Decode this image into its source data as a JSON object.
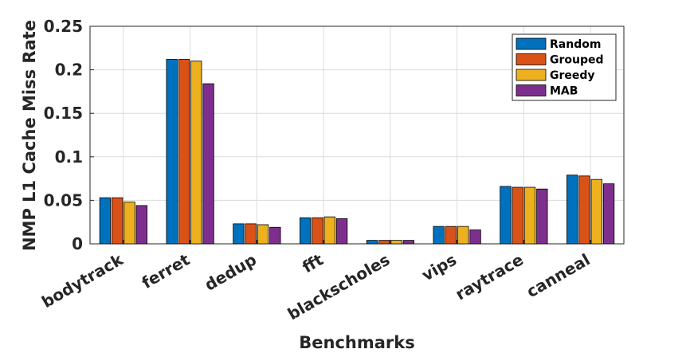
{
  "chart_data": {
    "type": "bar",
    "xlabel": "Benchmarks",
    "ylabel": "NMP L1 Cache Miss Rate",
    "ylim": [
      0,
      0.25
    ],
    "yticks": [
      "0",
      "0.05",
      "0.1",
      "0.15",
      "0.2",
      "0.25"
    ],
    "grid": true,
    "legend_position": "top-right",
    "categories": [
      "bodytrack",
      "ferret",
      "dedup",
      "fft",
      "blackscholes",
      "vips",
      "raytrace",
      "canneal"
    ],
    "series": [
      {
        "name": "Random",
        "color": "#0072BD",
        "values": [
          0.053,
          0.212,
          0.023,
          0.03,
          0.004,
          0.02,
          0.066,
          0.079
        ]
      },
      {
        "name": "Grouped",
        "color": "#D95319",
        "values": [
          0.053,
          0.212,
          0.023,
          0.03,
          0.004,
          0.02,
          0.065,
          0.078
        ]
      },
      {
        "name": "Greedy",
        "color": "#EDB120",
        "values": [
          0.048,
          0.21,
          0.022,
          0.031,
          0.004,
          0.02,
          0.065,
          0.074
        ]
      },
      {
        "name": "MAB",
        "color": "#7E2F8E",
        "values": [
          0.044,
          0.184,
          0.019,
          0.029,
          0.004,
          0.016,
          0.063,
          0.069
        ]
      }
    ]
  }
}
